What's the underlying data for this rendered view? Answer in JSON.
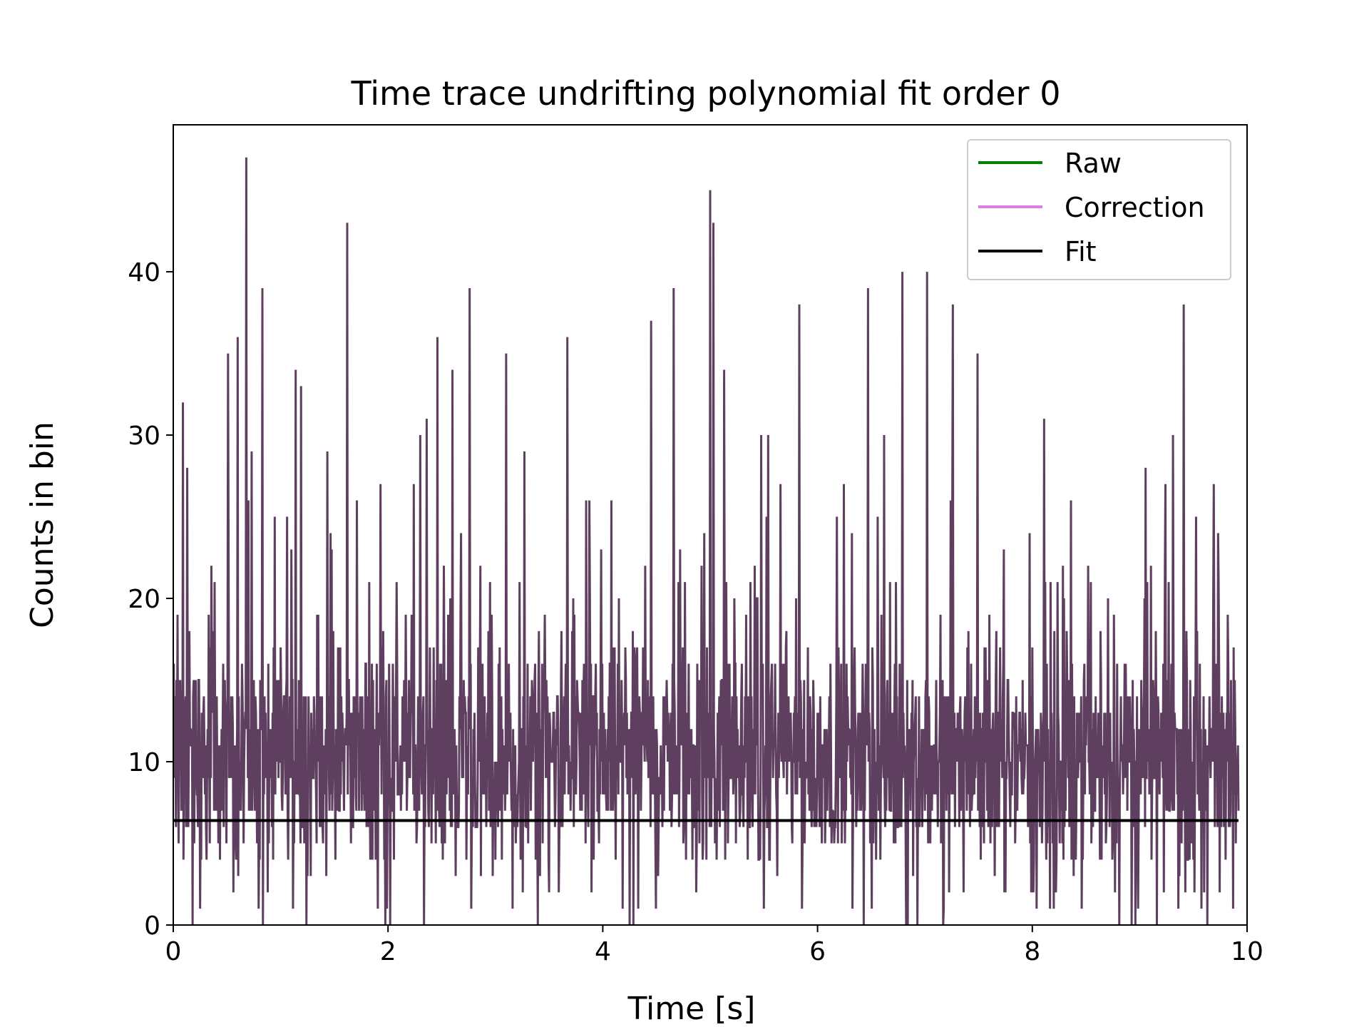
{
  "chart_data": {
    "type": "line",
    "title": "Time trace undrifting polynomial fit order 0",
    "xlabel": "Time [s]",
    "ylabel": "Counts in bin",
    "xlim": [
      0,
      10
    ],
    "ylim": [
      0,
      49
    ],
    "xticks": [
      0,
      2,
      4,
      6,
      8,
      10
    ],
    "yticks": [
      0,
      10,
      20,
      30,
      40
    ],
    "grid": false,
    "legend_position": "top-right",
    "series": [
      {
        "name": "Raw",
        "color": "#008000",
        "x_range": [
          0,
          9.92
        ],
        "samples": 1985,
        "mean": 9.7,
        "min": 0,
        "max": 47,
        "peaks": [
          {
            "x": 0.09,
            "y": 32
          },
          {
            "x": 0.13,
            "y": 28
          },
          {
            "x": 0.51,
            "y": 35
          },
          {
            "x": 0.6,
            "y": 36
          },
          {
            "x": 0.68,
            "y": 47
          },
          {
            "x": 0.73,
            "y": 29
          },
          {
            "x": 0.83,
            "y": 39
          },
          {
            "x": 1.14,
            "y": 34
          },
          {
            "x": 1.19,
            "y": 33
          },
          {
            "x": 1.62,
            "y": 43
          },
          {
            "x": 1.93,
            "y": 27
          },
          {
            "x": 2.36,
            "y": 31
          },
          {
            "x": 2.46,
            "y": 36
          },
          {
            "x": 2.6,
            "y": 34
          },
          {
            "x": 2.76,
            "y": 39
          },
          {
            "x": 3.1,
            "y": 35
          },
          {
            "x": 3.67,
            "y": 36
          },
          {
            "x": 4.45,
            "y": 37
          },
          {
            "x": 4.66,
            "y": 39
          },
          {
            "x": 5.0,
            "y": 45
          },
          {
            "x": 5.03,
            "y": 43
          },
          {
            "x": 5.13,
            "y": 34
          },
          {
            "x": 5.83,
            "y": 38
          },
          {
            "x": 6.47,
            "y": 39
          },
          {
            "x": 6.79,
            "y": 40
          },
          {
            "x": 7.02,
            "y": 40
          },
          {
            "x": 7.26,
            "y": 38
          },
          {
            "x": 7.49,
            "y": 35
          },
          {
            "x": 8.11,
            "y": 31
          },
          {
            "x": 9.31,
            "y": 30
          },
          {
            "x": 9.41,
            "y": 38
          }
        ]
      },
      {
        "name": "Correction",
        "color": "#da7fe0"
      },
      {
        "name": "Fit",
        "color": "#000000",
        "x": [
          0,
          9.92
        ],
        "y": [
          6.4,
          6.4
        ]
      }
    ],
    "trace_color": "#5e3f5f"
  }
}
